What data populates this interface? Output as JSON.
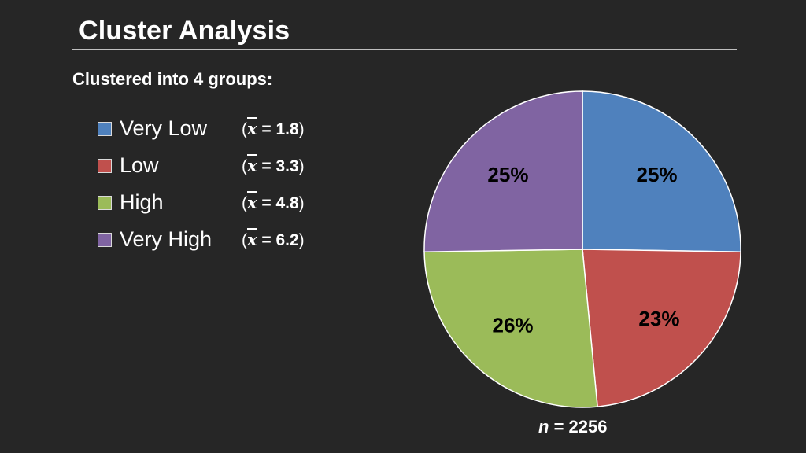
{
  "slide": {
    "title": "Cluster Analysis",
    "subtitle": "Clustered into 4 groups:",
    "footnote_var": "n",
    "footnote_eq": " = 2256"
  },
  "legend": {
    "mean_symbol": "x",
    "items": [
      {
        "label": "Very Low",
        "mean": "= 1.8",
        "color": "#4f81bd"
      },
      {
        "label": "Low",
        "mean": "= 3.3",
        "color": "#c0504d"
      },
      {
        "label": "High",
        "mean": "= 4.8",
        "color": "#9bbb59"
      },
      {
        "label": "Very High",
        "mean": "= 6.2",
        "color": "#8064a2"
      }
    ]
  },
  "chart_data": {
    "type": "pie",
    "categories": [
      "Very Low",
      "Low",
      "High",
      "Very High"
    ],
    "values": [
      25,
      23,
      26,
      25
    ],
    "data_labels": [
      "25%",
      "23%",
      "26%",
      "25%"
    ],
    "colors": [
      "#4f81bd",
      "#c0504d",
      "#9bbb59",
      "#8064a2"
    ],
    "start_angle_deg": 0,
    "direction": "clockwise",
    "n": 2256
  }
}
